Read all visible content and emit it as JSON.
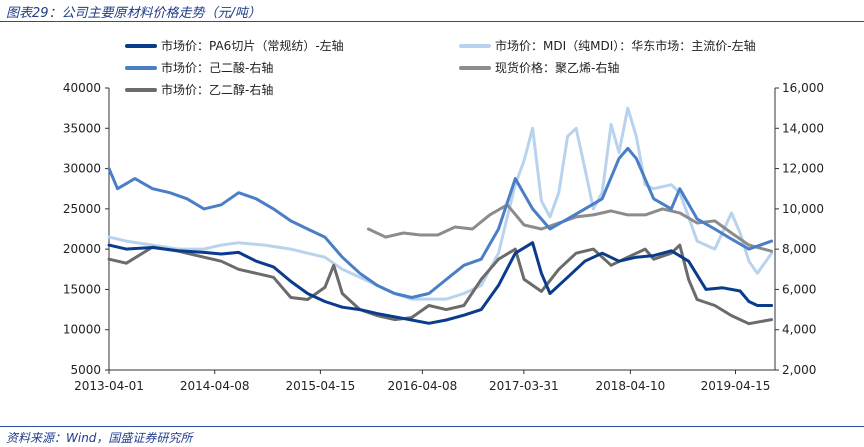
{
  "figure": {
    "title": "图表29：公司主要原材料价格走势（元/吨）",
    "source": "资料来源：Wind，国盛证券研究所"
  },
  "chart_data": {
    "type": "line",
    "title": "公司主要原材料价格走势（元/吨）",
    "x_ticks": [
      "2013-04-01",
      "2014-04-08",
      "2015-04-15",
      "2016-04-08",
      "2017-03-31",
      "2018-04-10",
      "2019-04-15"
    ],
    "x_range": [
      "2013-04-01",
      "2019-09-01"
    ],
    "y_left": {
      "min": 5000,
      "max": 40000,
      "ticks": [
        5000,
        10000,
        15000,
        20000,
        25000,
        30000,
        35000,
        40000
      ]
    },
    "y_right": {
      "min": 2000,
      "max": 16000,
      "ticks": [
        "2,000",
        "4,000",
        "6,000",
        "8,000",
        "10,000",
        "12,000",
        "14,000",
        "16,000"
      ],
      "tick_values": [
        2000,
        4000,
        6000,
        8000,
        10000,
        12000,
        14000,
        16000
      ]
    },
    "series": [
      {
        "name": "市场价：PA6切片（常规纺）-左轴",
        "axis": "left",
        "color": "#0b3c8c",
        "width": 3,
        "points": [
          [
            "2013-04-01",
            20500
          ],
          [
            "2013-06-01",
            20000
          ],
          [
            "2013-09-01",
            20200
          ],
          [
            "2013-12-01",
            19800
          ],
          [
            "2014-03-01",
            19600
          ],
          [
            "2014-05-01",
            19400
          ],
          [
            "2014-07-01",
            19600
          ],
          [
            "2014-09-01",
            18500
          ],
          [
            "2014-11-01",
            17800
          ],
          [
            "2015-01-01",
            16000
          ],
          [
            "2015-03-01",
            14500
          ],
          [
            "2015-05-01",
            13500
          ],
          [
            "2015-07-01",
            12800
          ],
          [
            "2015-09-01",
            12500
          ],
          [
            "2015-11-01",
            12000
          ],
          [
            "2016-01-01",
            11600
          ],
          [
            "2016-03-01",
            11200
          ],
          [
            "2016-05-01",
            10800
          ],
          [
            "2016-07-01",
            11200
          ],
          [
            "2016-09-01",
            11800
          ],
          [
            "2016-11-01",
            12500
          ],
          [
            "2017-01-01",
            15500
          ],
          [
            "2017-03-01",
            19500
          ],
          [
            "2017-05-01",
            20800
          ],
          [
            "2017-06-01",
            17000
          ],
          [
            "2017-07-01",
            14500
          ],
          [
            "2017-09-01",
            16500
          ],
          [
            "2017-11-01",
            18500
          ],
          [
            "2018-01-01",
            19500
          ],
          [
            "2018-03-01",
            18500
          ],
          [
            "2018-05-01",
            19000
          ],
          [
            "2018-07-01",
            19200
          ],
          [
            "2018-09-01",
            19800
          ],
          [
            "2018-11-01",
            18500
          ],
          [
            "2019-01-01",
            15000
          ],
          [
            "2019-03-01",
            15200
          ],
          [
            "2019-05-01",
            14800
          ],
          [
            "2019-06-01",
            13500
          ],
          [
            "2019-07-01",
            13000
          ],
          [
            "2019-08-20",
            13000
          ]
        ]
      },
      {
        "name": "市场价：MDI（纯MDI）：华东市场：主流价-左轴",
        "axis": "left",
        "color": "#b9d3ee",
        "width": 3,
        "points": [
          [
            "2013-04-01",
            21500
          ],
          [
            "2013-06-01",
            21000
          ],
          [
            "2013-09-01",
            20500
          ],
          [
            "2013-12-01",
            20000
          ],
          [
            "2014-03-01",
            20000
          ],
          [
            "2014-05-01",
            20500
          ],
          [
            "2014-07-01",
            20800
          ],
          [
            "2014-10-01",
            20500
          ],
          [
            "2015-01-01",
            20000
          ],
          [
            "2015-03-01",
            19500
          ],
          [
            "2015-05-01",
            19000
          ],
          [
            "2015-07-01",
            17500
          ],
          [
            "2015-09-01",
            16500
          ],
          [
            "2015-11-01",
            15500
          ],
          [
            "2016-01-01",
            14500
          ],
          [
            "2016-03-01",
            13800
          ],
          [
            "2016-05-01",
            13800
          ],
          [
            "2016-07-01",
            13800
          ],
          [
            "2016-09-01",
            14500
          ],
          [
            "2016-11-01",
            15500
          ],
          [
            "2017-01-01",
            19500
          ],
          [
            "2017-02-01",
            24000
          ],
          [
            "2017-03-01",
            28000
          ],
          [
            "2017-04-01",
            31000
          ],
          [
            "2017-05-01",
            35000
          ],
          [
            "2017-06-01",
            26000
          ],
          [
            "2017-07-01",
            24000
          ],
          [
            "2017-08-01",
            27000
          ],
          [
            "2017-09-01",
            34000
          ],
          [
            "2017-10-01",
            35000
          ],
          [
            "2017-11-01",
            30000
          ],
          [
            "2017-12-01",
            25000
          ],
          [
            "2018-01-01",
            27000
          ],
          [
            "2018-02-01",
            35500
          ],
          [
            "2018-03-01",
            32000
          ],
          [
            "2018-04-01",
            37500
          ],
          [
            "2018-05-01",
            34000
          ],
          [
            "2018-06-01",
            28000
          ],
          [
            "2018-07-01",
            27500
          ],
          [
            "2018-09-01",
            28000
          ],
          [
            "2018-10-01",
            27000
          ],
          [
            "2018-11-01",
            24000
          ],
          [
            "2018-12-01",
            21000
          ],
          [
            "2019-02-01",
            20000
          ],
          [
            "2019-04-01",
            24500
          ],
          [
            "2019-05-01",
            22000
          ],
          [
            "2019-06-01",
            18500
          ],
          [
            "2019-07-01",
            17000
          ],
          [
            "2019-08-20",
            19500
          ]
        ]
      },
      {
        "name": "市场价：己二酸-右轴",
        "axis": "right",
        "color": "#4a7fc7",
        "width": 3,
        "points": [
          [
            "2013-04-01",
            12000
          ],
          [
            "2013-05-01",
            11000
          ],
          [
            "2013-07-01",
            11500
          ],
          [
            "2013-09-01",
            11000
          ],
          [
            "2013-11-01",
            10800
          ],
          [
            "2014-01-01",
            10500
          ],
          [
            "2014-03-01",
            10000
          ],
          [
            "2014-05-01",
            10200
          ],
          [
            "2014-07-01",
            10800
          ],
          [
            "2014-09-01",
            10500
          ],
          [
            "2014-11-01",
            10000
          ],
          [
            "2015-01-01",
            9400
          ],
          [
            "2015-03-01",
            9000
          ],
          [
            "2015-05-01",
            8600
          ],
          [
            "2015-07-01",
            7600
          ],
          [
            "2015-09-01",
            6800
          ],
          [
            "2015-11-01",
            6200
          ],
          [
            "2016-01-01",
            5800
          ],
          [
            "2016-03-01",
            5600
          ],
          [
            "2016-05-01",
            5800
          ],
          [
            "2016-07-01",
            6500
          ],
          [
            "2016-09-01",
            7200
          ],
          [
            "2016-11-01",
            7500
          ],
          [
            "2017-01-01",
            9000
          ],
          [
            "2017-03-01",
            11500
          ],
          [
            "2017-05-01",
            10000
          ],
          [
            "2017-07-01",
            9000
          ],
          [
            "2017-09-01",
            9500
          ],
          [
            "2017-11-01",
            10000
          ],
          [
            "2018-01-01",
            10500
          ],
          [
            "2018-03-01",
            12500
          ],
          [
            "2018-04-01",
            13000
          ],
          [
            "2018-05-01",
            12500
          ],
          [
            "2018-07-01",
            10500
          ],
          [
            "2018-09-01",
            10000
          ],
          [
            "2018-10-01",
            11000
          ],
          [
            "2018-12-01",
            9500
          ],
          [
            "2019-02-01",
            9000
          ],
          [
            "2019-04-01",
            8500
          ],
          [
            "2019-06-01",
            8000
          ],
          [
            "2019-08-20",
            8400
          ]
        ]
      },
      {
        "name": "现货价格：聚乙烯-右轴",
        "axis": "right",
        "color": "#8c8c8c",
        "width": 3,
        "points": [
          [
            "2015-10-01",
            9000
          ],
          [
            "2015-12-01",
            8600
          ],
          [
            "2016-02-01",
            8800
          ],
          [
            "2016-04-01",
            8700
          ],
          [
            "2016-06-01",
            8700
          ],
          [
            "2016-08-01",
            9100
          ],
          [
            "2016-10-01",
            9000
          ],
          [
            "2016-12-01",
            9700
          ],
          [
            "2017-02-01",
            10200
          ],
          [
            "2017-04-01",
            9200
          ],
          [
            "2017-06-01",
            9000
          ],
          [
            "2017-08-01",
            9300
          ],
          [
            "2017-10-01",
            9600
          ],
          [
            "2017-12-01",
            9700
          ],
          [
            "2018-02-01",
            9900
          ],
          [
            "2018-04-01",
            9700
          ],
          [
            "2018-06-01",
            9700
          ],
          [
            "2018-08-01",
            10000
          ],
          [
            "2018-10-01",
            9800
          ],
          [
            "2018-12-01",
            9300
          ],
          [
            "2019-02-01",
            9400
          ],
          [
            "2019-04-01",
            8800
          ],
          [
            "2019-06-01",
            8200
          ],
          [
            "2019-08-20",
            7900
          ]
        ]
      },
      {
        "name": "市场价：乙二醇-右轴",
        "axis": "right",
        "color": "#6b6b6b",
        "width": 3,
        "points": [
          [
            "2013-04-01",
            7500
          ],
          [
            "2013-06-01",
            7300
          ],
          [
            "2013-09-01",
            8100
          ],
          [
            "2013-12-01",
            7900
          ],
          [
            "2014-03-01",
            7600
          ],
          [
            "2014-05-01",
            7400
          ],
          [
            "2014-07-01",
            7000
          ],
          [
            "2014-09-01",
            6800
          ],
          [
            "2014-11-01",
            6600
          ],
          [
            "2015-01-01",
            5600
          ],
          [
            "2015-03-01",
            5500
          ],
          [
            "2015-05-01",
            6100
          ],
          [
            "2015-06-01",
            7200
          ],
          [
            "2015-07-01",
            5800
          ],
          [
            "2015-09-01",
            5000
          ],
          [
            "2015-11-01",
            4700
          ],
          [
            "2016-01-01",
            4500
          ],
          [
            "2016-03-01",
            4600
          ],
          [
            "2016-05-01",
            5200
          ],
          [
            "2016-07-01",
            5000
          ],
          [
            "2016-09-01",
            5200
          ],
          [
            "2016-11-01",
            6500
          ],
          [
            "2017-01-01",
            7500
          ],
          [
            "2017-03-01",
            8000
          ],
          [
            "2017-04-01",
            6500
          ],
          [
            "2017-06-01",
            5900
          ],
          [
            "2017-08-01",
            7000
          ],
          [
            "2017-10-01",
            7800
          ],
          [
            "2017-12-01",
            8000
          ],
          [
            "2018-02-01",
            7200
          ],
          [
            "2018-04-01",
            7600
          ],
          [
            "2018-06-01",
            8000
          ],
          [
            "2018-07-01",
            7500
          ],
          [
            "2018-09-01",
            7800
          ],
          [
            "2018-10-01",
            8200
          ],
          [
            "2018-11-01",
            6500
          ],
          [
            "2018-12-01",
            5500
          ],
          [
            "2019-02-01",
            5200
          ],
          [
            "2019-04-01",
            4700
          ],
          [
            "2019-06-01",
            4300
          ],
          [
            "2019-08-20",
            4500
          ]
        ]
      }
    ],
    "legend": [
      "市场价：PA6切片（常规纺）-左轴",
      "市场价：MDI（纯MDI）：华东市场：主流价-左轴",
      "市场价：己二酸-右轴",
      "现货价格：聚乙烯-右轴",
      "市场价：乙二醇-右轴"
    ]
  }
}
